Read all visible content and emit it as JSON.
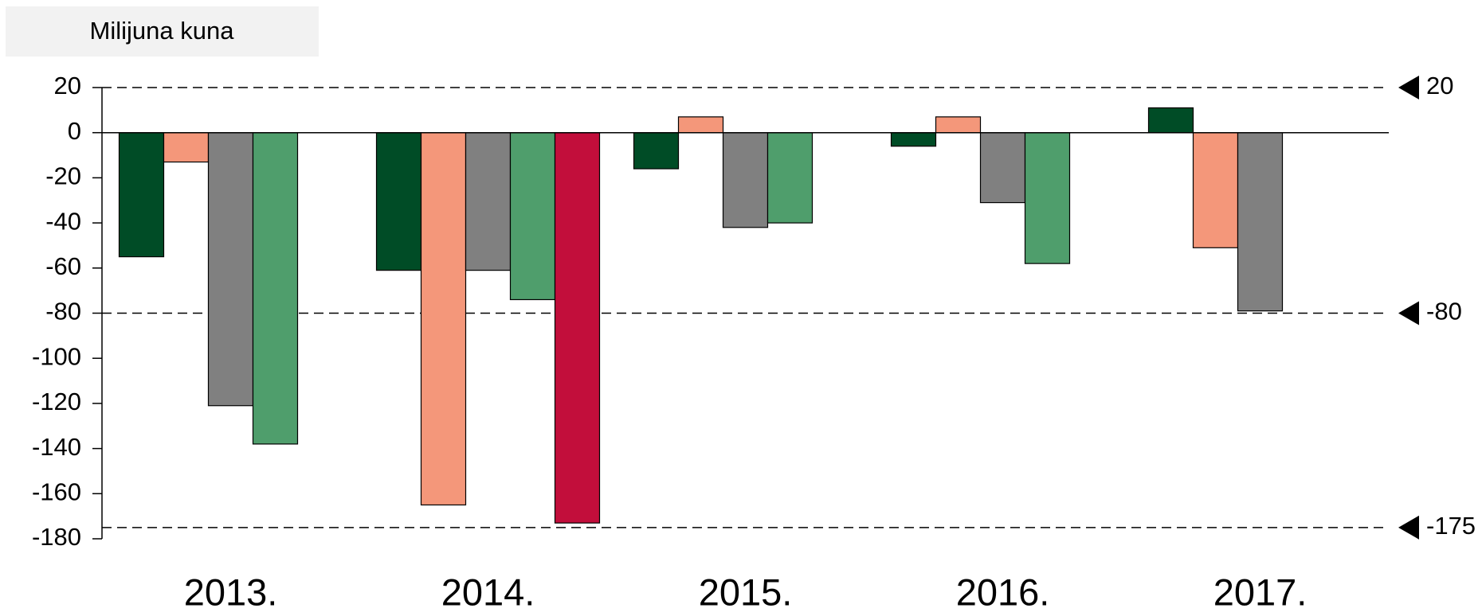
{
  "chart_data": {
    "type": "bar",
    "title": "Milijuna kuna",
    "categories": [
      "2013.",
      "2014.",
      "2015.",
      "2016.",
      "2017."
    ],
    "series": [
      {
        "color": "#004c26",
        "values": [
          -55,
          -61,
          -16,
          -6,
          11
        ]
      },
      {
        "color": "#f4977a",
        "values": [
          -13,
          -165,
          7,
          7,
          -51
        ]
      },
      {
        "color": "#808080",
        "values": [
          -121,
          -61,
          -42,
          -31,
          -79
        ]
      },
      {
        "color": "#4f9e6c",
        "values": [
          -138,
          -74,
          -40,
          -58,
          null
        ]
      },
      {
        "color": "#c20e3b",
        "values": [
          null,
          -173,
          null,
          null,
          null
        ]
      }
    ],
    "ylim": [
      -180,
      20
    ],
    "yticks": [
      20,
      0,
      -20,
      -40,
      -60,
      -80,
      -100,
      -120,
      -140,
      -160,
      -180
    ],
    "reference_lines": [
      20,
      -80,
      -175
    ]
  }
}
